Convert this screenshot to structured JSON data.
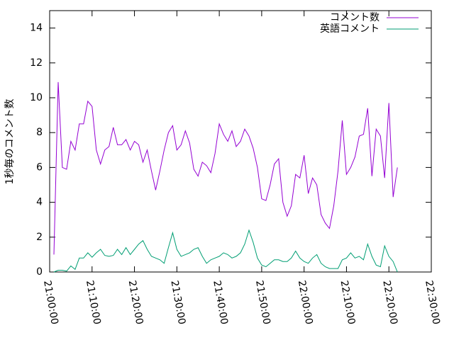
{
  "chart_data": {
    "type": "line",
    "ylabel": "1秒毎のコメント数",
    "x": [
      "21:01:00",
      "21:02:00",
      "21:03:00",
      "21:04:00",
      "21:05:00",
      "21:06:00",
      "21:07:00",
      "21:08:00",
      "21:09:00",
      "21:10:00",
      "21:11:00",
      "21:12:00",
      "21:13:00",
      "21:14:00",
      "21:15:00",
      "21:16:00",
      "21:17:00",
      "21:18:00",
      "21:19:00",
      "21:20:00",
      "21:21:00",
      "21:22:00",
      "21:23:00",
      "21:24:00",
      "21:25:00",
      "21:26:00",
      "21:27:00",
      "21:28:00",
      "21:29:00",
      "21:30:00",
      "21:31:00",
      "21:32:00",
      "21:33:00",
      "21:34:00",
      "21:35:00",
      "21:36:00",
      "21:37:00",
      "21:38:00",
      "21:39:00",
      "21:40:00",
      "21:41:00",
      "21:42:00",
      "21:43:00",
      "21:44:00",
      "21:45:00",
      "21:46:00",
      "21:47:00",
      "21:48:00",
      "21:49:00",
      "21:50:00",
      "21:51:00",
      "21:52:00",
      "21:53:00",
      "21:54:00",
      "21:55:00",
      "21:56:00",
      "21:57:00",
      "21:58:00",
      "21:59:00",
      "22:00:00",
      "22:01:00",
      "22:02:00",
      "22:03:00",
      "22:04:00",
      "22:05:00",
      "22:06:00",
      "22:07:00",
      "22:08:00",
      "22:09:00",
      "22:10:00",
      "22:11:00",
      "22:12:00",
      "22:13:00",
      "22:14:00",
      "22:15:00",
      "22:16:00",
      "22:17:00",
      "22:18:00",
      "22:19:00",
      "22:20:00",
      "22:21:00",
      "22:22:00"
    ],
    "series": [
      {
        "name": "コメント数",
        "color": "#9400d3",
        "values": [
          1.0,
          10.9,
          6.0,
          5.9,
          7.5,
          7.0,
          8.5,
          8.5,
          9.8,
          9.5,
          7.0,
          6.2,
          7.0,
          7.2,
          8.3,
          7.3,
          7.3,
          7.6,
          7.0,
          7.5,
          7.3,
          6.3,
          7.0,
          5.8,
          4.7,
          5.8,
          7.0,
          8.0,
          8.4,
          7.0,
          7.3,
          8.1,
          7.4,
          5.9,
          5.5,
          6.3,
          6.1,
          5.7,
          6.8,
          8.5,
          7.9,
          7.5,
          8.1,
          7.2,
          7.5,
          8.2,
          7.8,
          7.1,
          6.0,
          4.2,
          4.1,
          5.0,
          6.2,
          6.5,
          4.0,
          3.2,
          3.8,
          5.6,
          5.4,
          6.7,
          4.5,
          5.4,
          5.0,
          3.3,
          2.8,
          2.5,
          3.8,
          5.8,
          8.7,
          5.6,
          6.0,
          6.6,
          7.8,
          7.9,
          9.4,
          5.5,
          8.2,
          7.8,
          5.4,
          9.7,
          4.3,
          6.0
        ]
      },
      {
        "name": "英語コメント",
        "color": "#009e73",
        "values": [
          0.0,
          0.1,
          0.1,
          0.05,
          0.35,
          0.15,
          0.8,
          0.8,
          1.1,
          0.85,
          1.1,
          1.3,
          0.95,
          0.9,
          0.95,
          1.3,
          1.0,
          1.4,
          1.0,
          1.3,
          1.6,
          1.8,
          1.3,
          0.9,
          0.8,
          0.7,
          0.5,
          1.4,
          2.25,
          1.3,
          0.9,
          1.0,
          1.1,
          1.3,
          1.4,
          0.9,
          0.5,
          0.7,
          0.8,
          0.9,
          1.1,
          1.0,
          0.8,
          0.9,
          1.1,
          1.6,
          2.4,
          1.7,
          0.8,
          0.4,
          0.3,
          0.5,
          0.7,
          0.7,
          0.6,
          0.6,
          0.8,
          1.2,
          0.8,
          0.6,
          0.5,
          0.8,
          1.0,
          0.5,
          0.3,
          0.2,
          0.2,
          0.2,
          0.7,
          0.8,
          1.1,
          0.8,
          0.9,
          0.7,
          1.6,
          0.9,
          0.4,
          0.3,
          1.5,
          0.9,
          0.6,
          0.0
        ]
      }
    ],
    "xlim": [
      "21:00:00",
      "22:30:00"
    ],
    "xticks": [
      "21:00:00",
      "21:10:00",
      "21:20:00",
      "21:30:00",
      "21:40:00",
      "21:50:00",
      "22:00:00",
      "22:10:00",
      "22:20:00",
      "22:30:00"
    ],
    "ylim": [
      0,
      15
    ],
    "yticks": [
      0,
      2,
      4,
      6,
      8,
      10,
      12,
      14
    ],
    "legend": "top-right"
  }
}
